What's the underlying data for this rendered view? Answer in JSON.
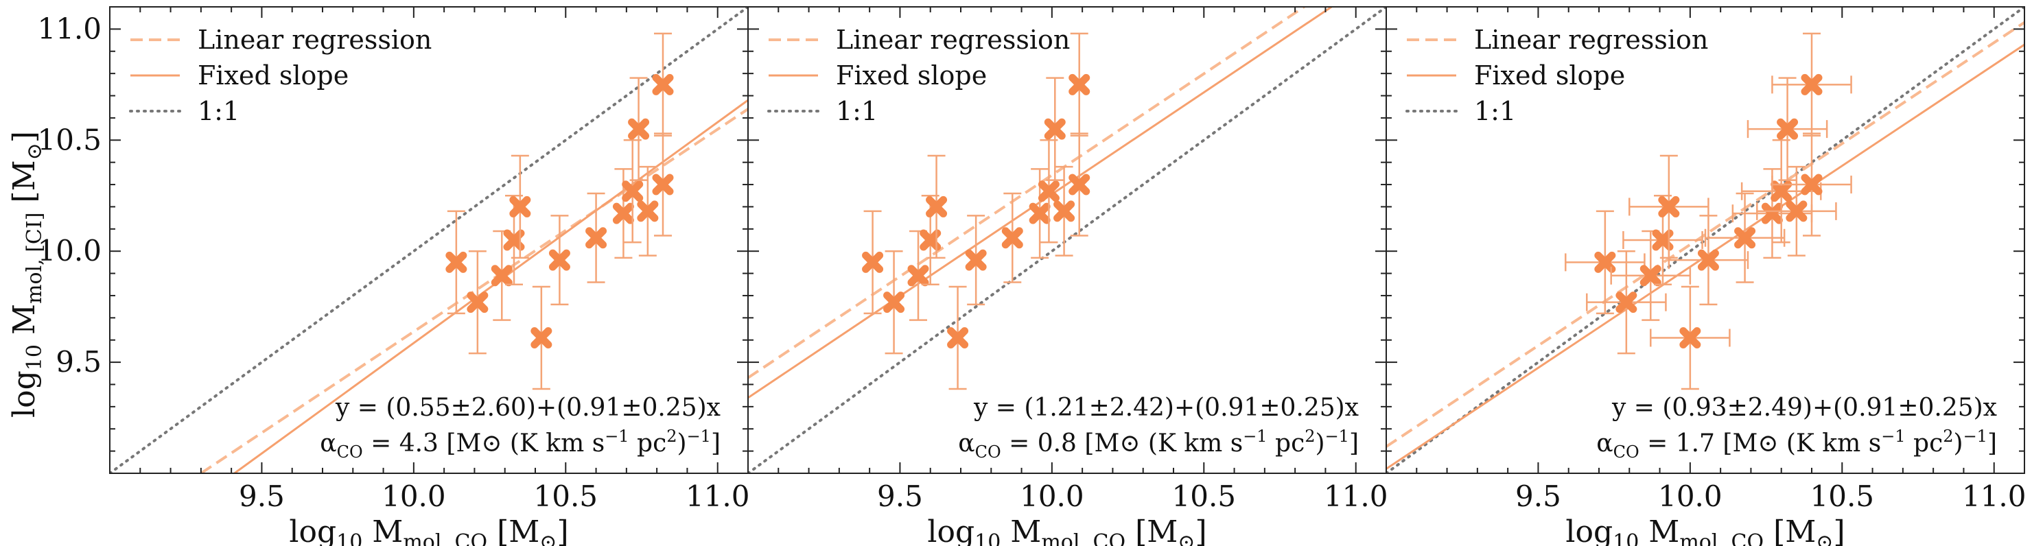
{
  "figure": {
    "ylabel_main": "log",
    "ylabel_sub": "10",
    "ylabel_tail": " M",
    "ylabel_mol_sub": "mol, [CI]",
    "ylabel_unit": " [M",
    "ylabel_unit_sub": "⊙",
    "ylabel_close": "]"
  },
  "chart_data": [
    {
      "type": "scatter",
      "panel": "left",
      "xlabel": "log10 Mmol, CO [M⊙]",
      "ylabel": "log10 Mmol, [CI] [M⊙]",
      "xlim": [
        9.0,
        11.1
      ],
      "ylim": [
        9.0,
        11.1
      ],
      "xticks": [
        "9.5",
        "10.0",
        "10.5",
        "11.0"
      ],
      "yticks": [
        "9.5",
        "10.0",
        "10.5",
        "11.0"
      ],
      "legend": [
        "Linear regression",
        "Fixed slope",
        "1:1"
      ],
      "legend_position": "top-left",
      "alpha_co": "4.3",
      "fit_text": "y = (0.55±2.60)+(0.91±0.25)x",
      "alpha_text_pre": "α",
      "alpha_text_sub": "CO",
      "alpha_text_post": " = 4.3 [M",
      "alpha_text_tail": " (K km s",
      "alpha_text_exp": "−1",
      "alpha_text_tail2": " pc",
      "alpha_text_exp2": "2",
      "alpha_text_end": ")",
      "alpha_text_exp3": "−1",
      "alpha_text_close": "]",
      "linear_regression": {
        "intercept": 0.55,
        "slope": 0.91
      },
      "fixed_slope": {
        "x_at_y_9": 9.41,
        "x_at_y_10_7": 11.1,
        "points": [
          [
            9.41,
            9.0
          ],
          [
            11.1,
            10.68
          ]
        ]
      },
      "linreg_points": [
        [
          9.3,
          9.0
        ],
        [
          11.1,
          10.64
        ]
      ],
      "points": [
        {
          "x": 10.14,
          "y": 9.95,
          "xerr": 0.0,
          "yerr": 0.23
        },
        {
          "x": 10.21,
          "y": 9.77,
          "xerr": 0.0,
          "yerr": 0.23
        },
        {
          "x": 10.29,
          "y": 9.89,
          "xerr": 0.0,
          "yerr": 0.2
        },
        {
          "x": 10.33,
          "y": 10.05,
          "xerr": 0.0,
          "yerr": 0.2
        },
        {
          "x": 10.35,
          "y": 10.2,
          "xerr": 0.0,
          "yerr": 0.23
        },
        {
          "x": 10.42,
          "y": 9.61,
          "xerr": 0.0,
          "yerr": 0.23
        },
        {
          "x": 10.48,
          "y": 9.96,
          "xerr": 0.0,
          "yerr": 0.2
        },
        {
          "x": 10.6,
          "y": 10.06,
          "xerr": 0.0,
          "yerr": 0.2
        },
        {
          "x": 10.69,
          "y": 10.17,
          "xerr": 0.0,
          "yerr": 0.2
        },
        {
          "x": 10.72,
          "y": 10.27,
          "xerr": 0.0,
          "yerr": 0.23
        },
        {
          "x": 10.74,
          "y": 10.55,
          "xerr": 0.0,
          "yerr": 0.23
        },
        {
          "x": 10.77,
          "y": 10.18,
          "xerr": 0.0,
          "yerr": 0.2
        },
        {
          "x": 10.82,
          "y": 10.3,
          "xerr": 0.0,
          "yerr": 0.23
        },
        {
          "x": 10.82,
          "y": 10.75,
          "xerr": 0.0,
          "yerr": 0.23
        }
      ]
    },
    {
      "type": "scatter",
      "panel": "middle",
      "xlabel": "log10 Mmol, CO [M⊙]",
      "xlim": [
        9.0,
        11.1
      ],
      "ylim": [
        9.0,
        11.1
      ],
      "xticks": [
        "9.5",
        "10.0",
        "10.5",
        "11.0"
      ],
      "legend": [
        "Linear regression",
        "Fixed slope",
        "1:1"
      ],
      "legend_position": "top-left",
      "alpha_co": "0.8",
      "fit_text": "y = (1.21±2.42)+(0.91±0.25)x",
      "alpha_text_pre": "α",
      "alpha_text_sub": "CO",
      "alpha_text_post": " = 0.8 [M",
      "alpha_text_tail": " (K km s",
      "alpha_text_exp": "−1",
      "alpha_text_tail2": " pc",
      "alpha_text_exp2": "2",
      "alpha_text_end": ")",
      "alpha_text_exp3": "−1",
      "alpha_text_close": "]",
      "linreg_points": [
        [
          9.0,
          9.43
        ],
        [
          10.83,
          11.1
        ]
      ],
      "fixed_points": [
        [
          9.0,
          9.34
        ],
        [
          10.92,
          11.1
        ]
      ],
      "points": [
        {
          "x": 9.41,
          "y": 9.95,
          "xerr": 0.0,
          "yerr": 0.23
        },
        {
          "x": 9.48,
          "y": 9.77,
          "xerr": 0.0,
          "yerr": 0.23
        },
        {
          "x": 9.56,
          "y": 9.89,
          "xerr": 0.0,
          "yerr": 0.2
        },
        {
          "x": 9.6,
          "y": 10.05,
          "xerr": 0.0,
          "yerr": 0.2
        },
        {
          "x": 9.62,
          "y": 10.2,
          "xerr": 0.0,
          "yerr": 0.23
        },
        {
          "x": 9.69,
          "y": 9.61,
          "xerr": 0.0,
          "yerr": 0.23
        },
        {
          "x": 9.75,
          "y": 9.96,
          "xerr": 0.0,
          "yerr": 0.2
        },
        {
          "x": 9.87,
          "y": 10.06,
          "xerr": 0.0,
          "yerr": 0.2
        },
        {
          "x": 9.96,
          "y": 10.17,
          "xerr": 0.0,
          "yerr": 0.2
        },
        {
          "x": 9.99,
          "y": 10.27,
          "xerr": 0.0,
          "yerr": 0.23
        },
        {
          "x": 10.01,
          "y": 10.55,
          "xerr": 0.0,
          "yerr": 0.23
        },
        {
          "x": 10.04,
          "y": 10.18,
          "xerr": 0.0,
          "yerr": 0.2
        },
        {
          "x": 10.09,
          "y": 10.3,
          "xerr": 0.0,
          "yerr": 0.23
        },
        {
          "x": 10.09,
          "y": 10.75,
          "xerr": 0.0,
          "yerr": 0.23
        }
      ]
    },
    {
      "type": "scatter",
      "panel": "right",
      "xlabel": "log10 Mmol, CO [M⊙]",
      "xlim": [
        9.0,
        11.1
      ],
      "ylim": [
        9.0,
        11.1
      ],
      "xticks": [
        "9.5",
        "10.0",
        "10.5",
        "11.0"
      ],
      "legend": [
        "Linear regression",
        "Fixed slope",
        "1:1"
      ],
      "legend_position": "top-left",
      "alpha_co": "1.7",
      "fit_text": "y = (0.93±2.49)+(0.91±0.25)x",
      "alpha_text_pre": "α",
      "alpha_text_sub": "CO",
      "alpha_text_post": " = 1.7 [M",
      "alpha_text_tail": " (K km s",
      "alpha_text_exp": "−1",
      "alpha_text_tail2": " pc",
      "alpha_text_exp2": "2",
      "alpha_text_end": ")",
      "alpha_text_exp3": "−1",
      "alpha_text_close": "]",
      "linreg_points": [
        [
          9.0,
          9.12
        ],
        [
          11.1,
          11.03
        ]
      ],
      "fixed_points": [
        [
          9.0,
          9.02
        ],
        [
          11.1,
          10.93
        ]
      ],
      "points": [
        {
          "x": 9.72,
          "y": 9.95,
          "xerr": 0.13,
          "yerr": 0.23
        },
        {
          "x": 9.79,
          "y": 9.77,
          "xerr": 0.13,
          "yerr": 0.23
        },
        {
          "x": 9.87,
          "y": 9.89,
          "xerr": 0.13,
          "yerr": 0.2
        },
        {
          "x": 9.91,
          "y": 10.05,
          "xerr": 0.13,
          "yerr": 0.2
        },
        {
          "x": 9.93,
          "y": 10.2,
          "xerr": 0.13,
          "yerr": 0.23
        },
        {
          "x": 10.0,
          "y": 9.61,
          "xerr": 0.13,
          "yerr": 0.23
        },
        {
          "x": 10.06,
          "y": 9.96,
          "xerr": 0.13,
          "yerr": 0.2
        },
        {
          "x": 10.18,
          "y": 10.06,
          "xerr": 0.13,
          "yerr": 0.2
        },
        {
          "x": 10.27,
          "y": 10.17,
          "xerr": 0.13,
          "yerr": 0.2
        },
        {
          "x": 10.3,
          "y": 10.27,
          "xerr": 0.13,
          "yerr": 0.23
        },
        {
          "x": 10.32,
          "y": 10.55,
          "xerr": 0.13,
          "yerr": 0.23
        },
        {
          "x": 10.35,
          "y": 10.18,
          "xerr": 0.13,
          "yerr": 0.2
        },
        {
          "x": 10.4,
          "y": 10.3,
          "xerr": 0.13,
          "yerr": 0.23
        },
        {
          "x": 10.4,
          "y": 10.75,
          "xerr": 0.13,
          "yerr": 0.23
        }
      ]
    }
  ],
  "colors": {
    "marker": "#f4884a",
    "errorbar": "#f4a476",
    "linreg": "#f9b991",
    "fixed": "#f6a06e",
    "oneone": "#777777",
    "axis": "#222222"
  }
}
